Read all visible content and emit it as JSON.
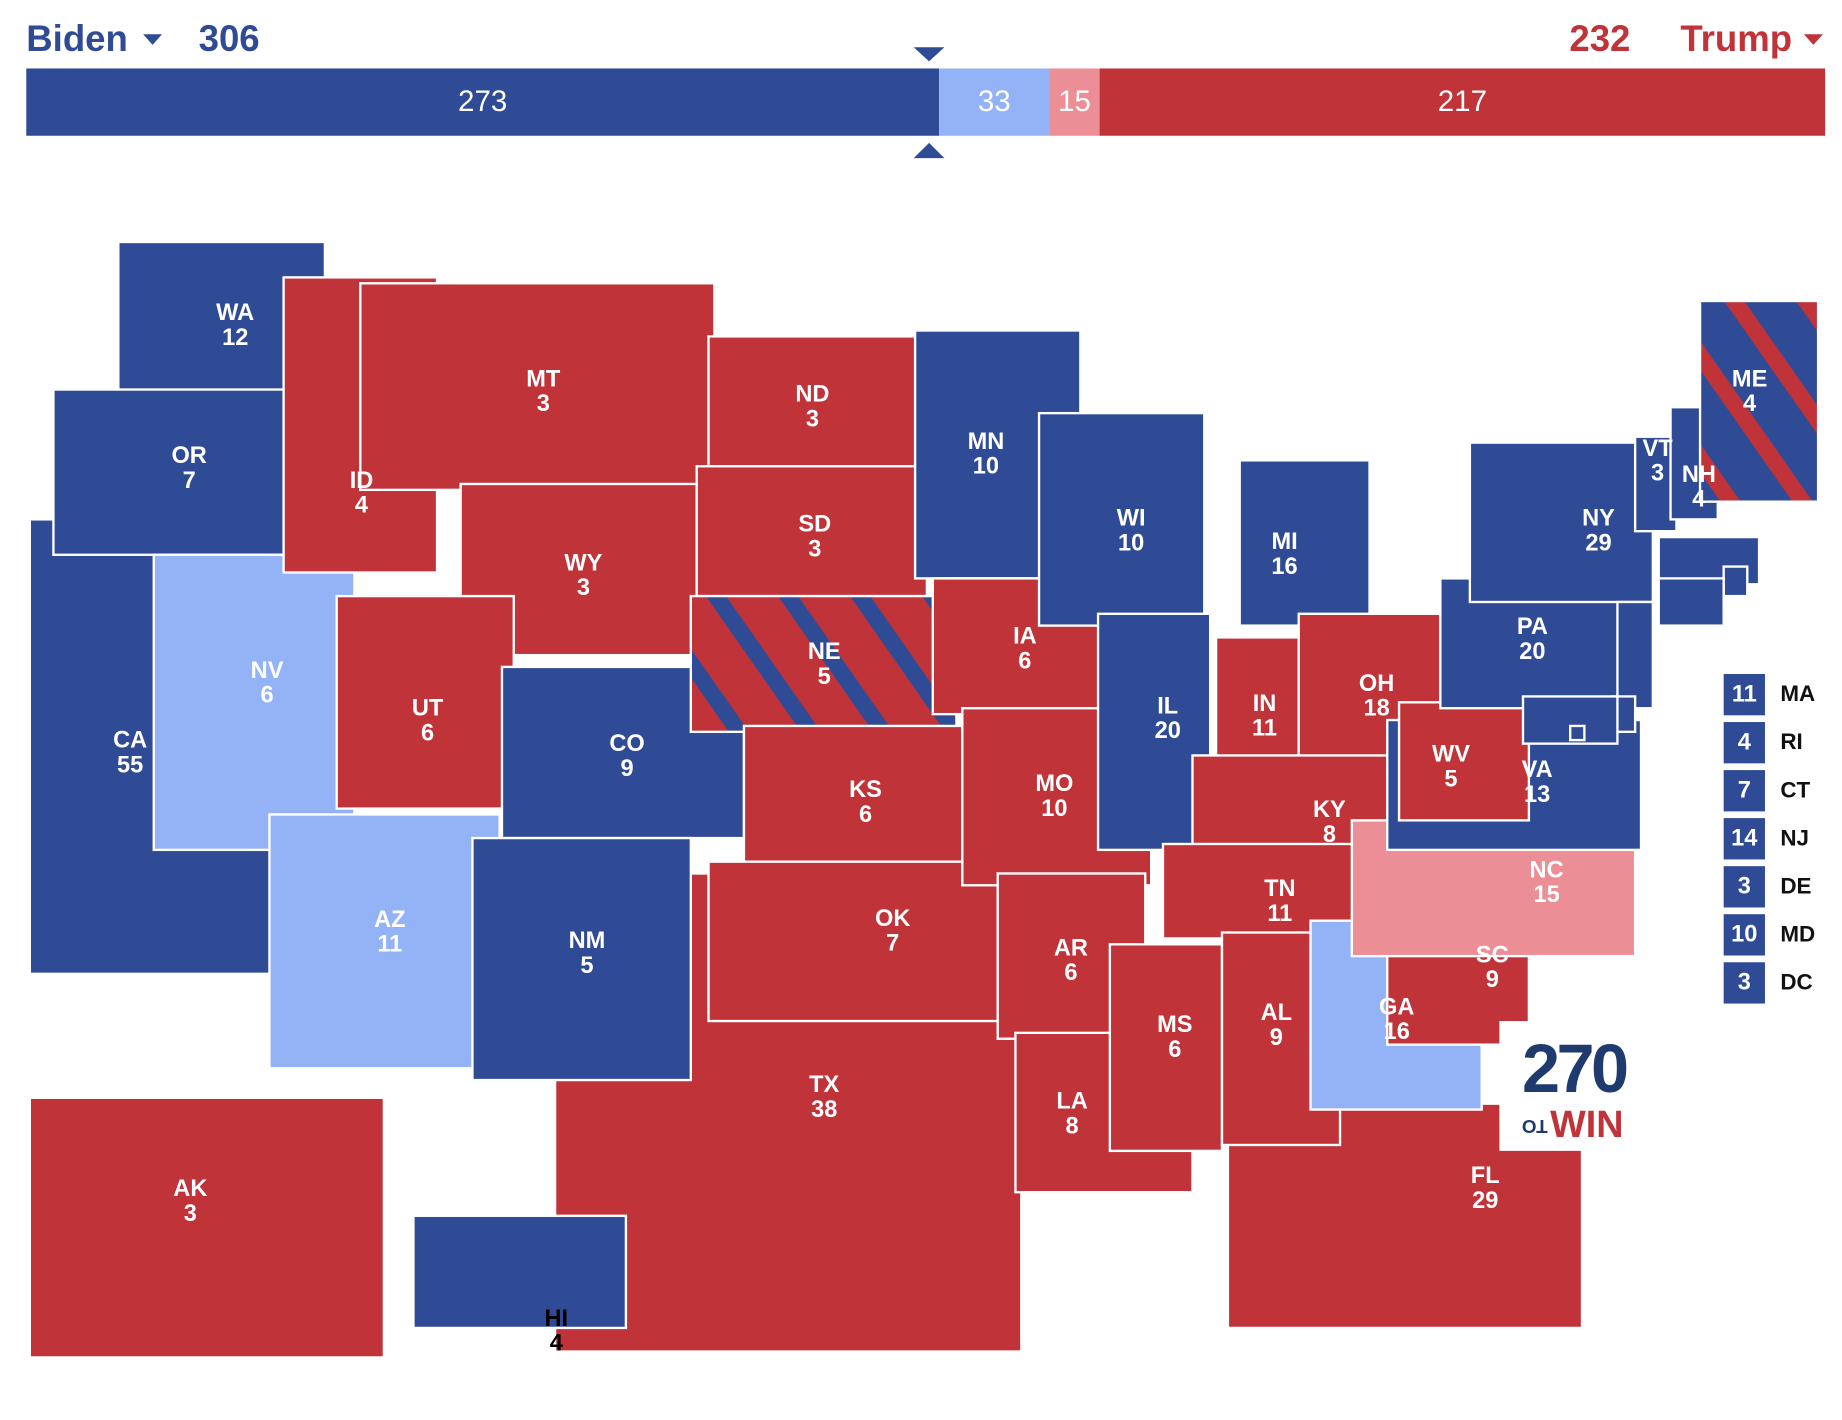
{
  "header": {
    "left": {
      "name": "Biden",
      "total": 306,
      "color": "#2f4b96"
    },
    "right": {
      "name": "Trump",
      "total": 232,
      "color": "#bf3339"
    }
  },
  "bar": {
    "segments": [
      {
        "value": 273,
        "color": "#2f4b96"
      },
      {
        "value": 33,
        "color": "#94b3f7"
      },
      {
        "value": 15,
        "color": "#ec8e96"
      },
      {
        "value": 217,
        "color": "#bf3339"
      }
    ]
  },
  "logo": {
    "number": 270,
    "small": "TO",
    "word": "WIN"
  },
  "states": [
    {
      "abbr": "TX",
      "votes": 38,
      "color": "#bf3339"
    },
    {
      "abbr": "CA",
      "votes": 55,
      "color": "#2f4b96"
    },
    {
      "abbr": "FL",
      "votes": 29,
      "color": "#bf3339"
    },
    {
      "abbr": "AK",
      "votes": 3,
      "color": "#bf3339"
    },
    {
      "abbr": "HI",
      "votes": 4,
      "color": "#2f4b96"
    },
    {
      "abbr": "WA",
      "votes": 12,
      "color": "#2f4b96"
    },
    {
      "abbr": "OR",
      "votes": 7,
      "color": "#2f4b96"
    },
    {
      "abbr": "NV",
      "votes": 6,
      "color": "#94b3f7"
    },
    {
      "abbr": "ID",
      "votes": 4,
      "color": "#bf3339"
    },
    {
      "abbr": "MT",
      "votes": 3,
      "color": "#bf3339"
    },
    {
      "abbr": "WY",
      "votes": 3,
      "color": "#bf3339"
    },
    {
      "abbr": "UT",
      "votes": 6,
      "color": "#bf3339"
    },
    {
      "abbr": "AZ",
      "votes": 11,
      "color": "#94b3f7"
    },
    {
      "abbr": "CO",
      "votes": 9,
      "color": "#2f4b96"
    },
    {
      "abbr": "NM",
      "votes": 5,
      "color": "#2f4b96"
    },
    {
      "abbr": "ND",
      "votes": 3,
      "color": "#bf3339"
    },
    {
      "abbr": "SD",
      "votes": 3,
      "color": "#bf3339"
    },
    {
      "abbr": "NE",
      "votes": 5,
      "color": "#bf3339",
      "stripe": "#2f4b96"
    },
    {
      "abbr": "KS",
      "votes": 6,
      "color": "#bf3339"
    },
    {
      "abbr": "OK",
      "votes": 7,
      "color": "#bf3339"
    },
    {
      "abbr": "MN",
      "votes": 10,
      "color": "#2f4b96"
    },
    {
      "abbr": "IA",
      "votes": 6,
      "color": "#bf3339"
    },
    {
      "abbr": "MO",
      "votes": 10,
      "color": "#bf3339"
    },
    {
      "abbr": "AR",
      "votes": 6,
      "color": "#bf3339"
    },
    {
      "abbr": "LA",
      "votes": 8,
      "color": "#bf3339"
    },
    {
      "abbr": "WI",
      "votes": 10,
      "color": "#2f4b96"
    },
    {
      "abbr": "IL",
      "votes": 20,
      "color": "#2f4b96"
    },
    {
      "abbr": "MI",
      "votes": 16,
      "color": "#2f4b96"
    },
    {
      "abbr": "IN",
      "votes": 11,
      "color": "#bf3339"
    },
    {
      "abbr": "OH",
      "votes": 18,
      "color": "#bf3339"
    },
    {
      "abbr": "KY",
      "votes": 8,
      "color": "#bf3339"
    },
    {
      "abbr": "TN",
      "votes": 11,
      "color": "#bf3339"
    },
    {
      "abbr": "MS",
      "votes": 6,
      "color": "#bf3339"
    },
    {
      "abbr": "AL",
      "votes": 9,
      "color": "#bf3339"
    },
    {
      "abbr": "GA",
      "votes": 16,
      "color": "#94b3f7"
    },
    {
      "abbr": "SC",
      "votes": 9,
      "color": "#bf3339"
    },
    {
      "abbr": "NC",
      "votes": 15,
      "color": "#ec8e96"
    },
    {
      "abbr": "VA",
      "votes": 13,
      "color": "#2f4b96"
    },
    {
      "abbr": "WV",
      "votes": 5,
      "color": "#bf3339"
    },
    {
      "abbr": "PA",
      "votes": 20,
      "color": "#2f4b96"
    },
    {
      "abbr": "NY",
      "votes": 29,
      "color": "#2f4b96"
    },
    {
      "abbr": "VT",
      "votes": 3,
      "color": "#2f4b96"
    },
    {
      "abbr": "NH",
      "votes": 4,
      "color": "#2f4b96"
    },
    {
      "abbr": "ME",
      "votes": 4,
      "color": "#2f4b96",
      "stripe": "#bf3339"
    },
    {
      "abbr": "MA",
      "votes": 11,
      "color": "#2f4b96"
    },
    {
      "abbr": "RI",
      "votes": 4,
      "color": "#2f4b96"
    },
    {
      "abbr": "CT",
      "votes": 7,
      "color": "#2f4b96"
    },
    {
      "abbr": "NJ",
      "votes": 14,
      "color": "#2f4b96"
    },
    {
      "abbr": "DE",
      "votes": 3,
      "color": "#2f4b96"
    },
    {
      "abbr": "MD",
      "votes": 10,
      "color": "#2f4b96"
    },
    {
      "abbr": "DC",
      "votes": 3,
      "color": "#2f4b96"
    }
  ]
}
